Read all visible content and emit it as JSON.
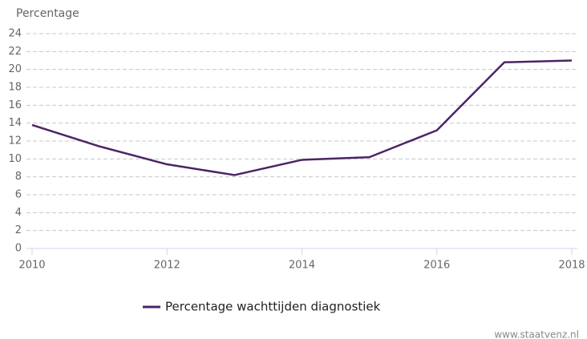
{
  "chart_data": {
    "type": "line",
    "y_axis_label": "Percentage",
    "x": [
      2010,
      2011,
      2012,
      2013,
      2014,
      2015,
      2016,
      2017,
      2018
    ],
    "series": [
      {
        "name": "Percentage wachttijden diagnostiek",
        "color": "#4b2466",
        "values": [
          13.8,
          11.4,
          9.4,
          8.2,
          9.9,
          10.2,
          13.2,
          20.8,
          21.0
        ]
      }
    ],
    "xlim": [
      2010,
      2018
    ],
    "xticks": [
      2010,
      2012,
      2014,
      2016,
      2018
    ],
    "ylim": [
      0,
      24
    ],
    "yticks": [
      0,
      2,
      4,
      6,
      8,
      10,
      12,
      14,
      16,
      18,
      20,
      22,
      24
    ],
    "grid": true,
    "legend": "bottom",
    "source": "www.staatvenz.nl"
  }
}
